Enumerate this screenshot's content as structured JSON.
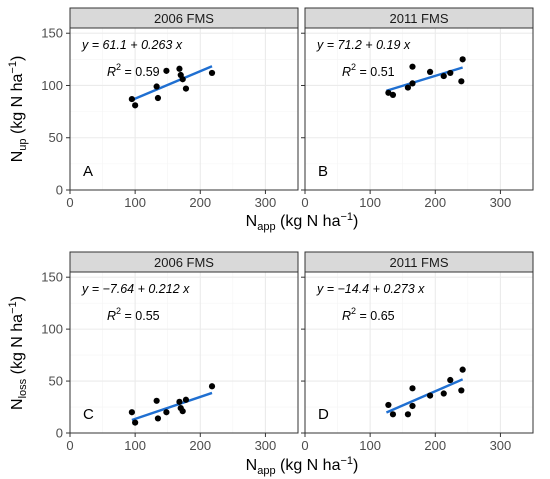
{
  "chart_data": {
    "type": "scatter",
    "layout": "2x2 facet grid",
    "x_axis": {
      "label_main": "N",
      "label_sub": "app",
      "label_unit": "(kg N ha",
      "label_sup": "−1",
      "label_close": ")",
      "range": [
        0,
        350
      ],
      "ticks": [
        0,
        100,
        200,
        300
      ]
    },
    "y_axis": {
      "range": [
        0,
        155
      ],
      "ticks": [
        0,
        50,
        100,
        150
      ]
    },
    "grid": true,
    "rows": [
      {
        "ylabel_main": "N",
        "ylabel_sub": "up",
        "ylabel_unit": "(kg N ha",
        "ylabel_sup": "−1",
        "ylabel_close": ")"
      },
      {
        "ylabel_main": "N",
        "ylabel_sub": "loss",
        "ylabel_unit": "(kg N ha",
        "ylabel_sup": "−1",
        "ylabel_close": ")"
      }
    ],
    "panels": [
      {
        "letter": "A",
        "strip": "2006 FMS",
        "equation": "y = 61.1 + 0.263 x",
        "r2_label": "R",
        "r2_value": " = 0.59",
        "intercept": 61.1,
        "slope": 0.263,
        "fit_x": [
          95,
          218
        ],
        "points": [
          [
            95,
            87
          ],
          [
            100,
            81
          ],
          [
            133,
            99
          ],
          [
            135,
            88
          ],
          [
            148,
            114
          ],
          [
            168,
            116
          ],
          [
            170,
            110
          ],
          [
            173,
            106
          ],
          [
            178,
            97
          ],
          [
            218,
            112
          ]
        ]
      },
      {
        "letter": "B",
        "strip": "2011 FMS",
        "equation": "y = 71.2 + 0.19 x",
        "r2_label": "R",
        "r2_value": " = 0.51",
        "intercept": 71.2,
        "slope": 0.19,
        "fit_x": [
          125,
          242
        ],
        "points": [
          [
            128,
            93
          ],
          [
            135,
            91
          ],
          [
            158,
            98
          ],
          [
            165,
            102
          ],
          [
            165,
            118
          ],
          [
            192,
            113
          ],
          [
            213,
            109
          ],
          [
            223,
            112
          ],
          [
            240,
            104
          ],
          [
            242,
            125
          ]
        ]
      },
      {
        "letter": "C",
        "strip": "2006 FMS",
        "equation": "y = −7.64 + 0.212 x",
        "r2_label": "R",
        "r2_value": " = 0.55",
        "intercept": -7.64,
        "slope": 0.212,
        "fit_x": [
          95,
          218
        ],
        "points": [
          [
            95,
            20
          ],
          [
            100,
            10
          ],
          [
            133,
            31
          ],
          [
            135,
            14
          ],
          [
            148,
            20
          ],
          [
            168,
            30
          ],
          [
            170,
            24
          ],
          [
            173,
            21
          ],
          [
            178,
            32
          ],
          [
            218,
            45
          ]
        ]
      },
      {
        "letter": "D",
        "strip": "2011 FMS",
        "equation": "y = −14.4 + 0.273 x",
        "r2_label": "R",
        "r2_value": " = 0.65",
        "intercept": -14.4,
        "slope": 0.273,
        "fit_x": [
          125,
          242
        ],
        "points": [
          [
            128,
            27
          ],
          [
            135,
            18
          ],
          [
            158,
            18
          ],
          [
            165,
            26
          ],
          [
            165,
            43
          ],
          [
            192,
            36
          ],
          [
            213,
            38
          ],
          [
            223,
            51
          ],
          [
            240,
            41
          ],
          [
            242,
            61
          ]
        ]
      }
    ]
  }
}
